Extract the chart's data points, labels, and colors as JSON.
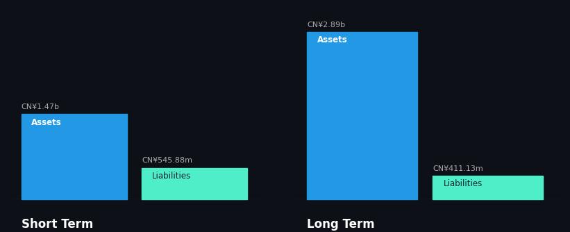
{
  "background_color": "#0d1117",
  "short_term": {
    "assets_value": 1.47,
    "assets_label": "CN¥1.47b",
    "assets_color": "#2399E5",
    "liabilities_value": 0.54588,
    "liabilities_label": "CN¥545.88m",
    "liabilities_color": "#4EEEC8",
    "bar_label_assets": "Assets",
    "bar_label_liabilities": "Liabilities",
    "section_title": "Short Term"
  },
  "long_term": {
    "assets_value": 2.89,
    "assets_label": "CN¥2.89b",
    "assets_color": "#2399E5",
    "liabilities_value": 0.41113,
    "liabilities_label": "CN¥411.13m",
    "liabilities_color": "#4EEEC8",
    "bar_label_assets": "Assets",
    "bar_label_liabilities": "Liabilities",
    "section_title": "Long Term"
  },
  "text_color": "#ffffff",
  "label_color": "#aaaaaa",
  "title_fontsize": 12,
  "bar_label_fontsize": 8.5,
  "value_label_fontsize": 8.0,
  "ylim_max": 3.2
}
